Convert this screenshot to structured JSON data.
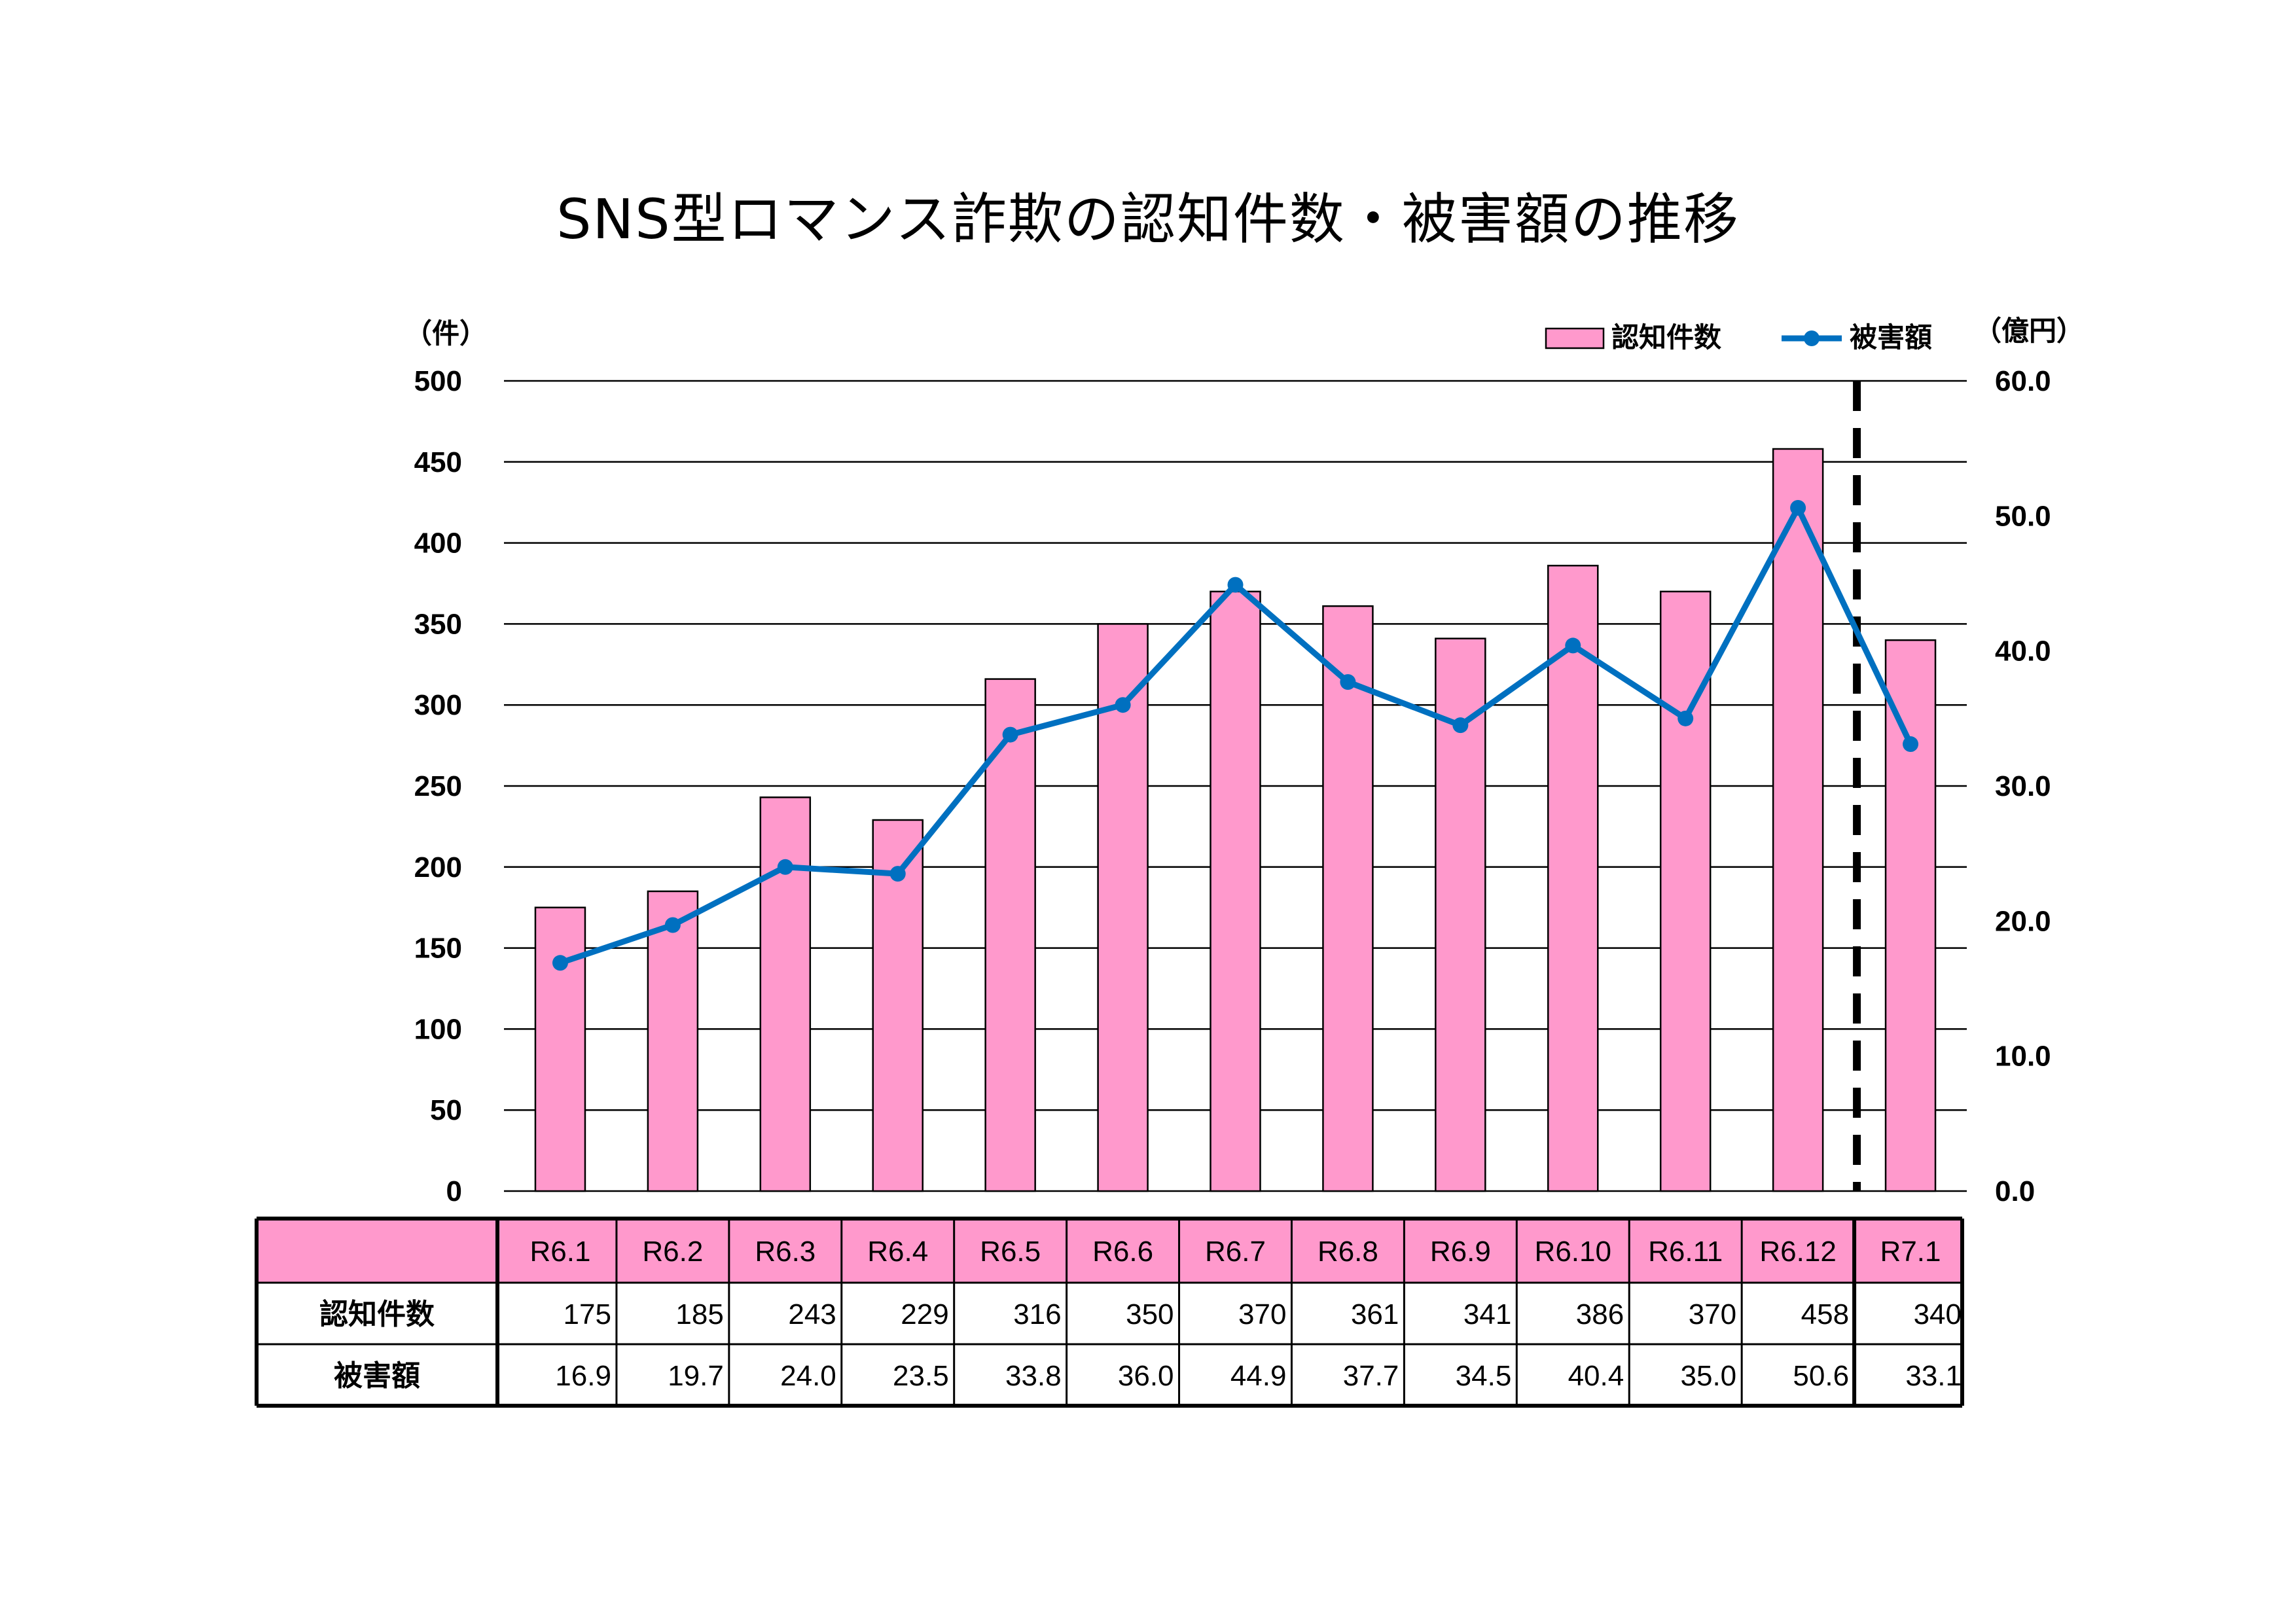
{
  "colors": {
    "bar_fill": "#FF99CC",
    "bar_stroke": "#000000",
    "line": "#0070C0",
    "grid": "#000000",
    "table_header_fill": "#FF99CC"
  },
  "chart_data": {
    "type": "bar",
    "title": "SNS型ロマンス詐欺の認知件数・被害額の推移",
    "categories": [
      "R6.1",
      "R6.2",
      "R6.3",
      "R6.4",
      "R6.5",
      "R6.6",
      "R6.7",
      "R6.8",
      "R6.9",
      "R6.10",
      "R6.11",
      "R6.12",
      "R7.1"
    ],
    "series": [
      {
        "name": "認知件数",
        "type": "bar",
        "axis": "left",
        "values": [
          175,
          185,
          243,
          229,
          316,
          350,
          370,
          361,
          341,
          386,
          370,
          458,
          340
        ]
      },
      {
        "name": "被害額",
        "type": "line",
        "axis": "right",
        "values": [
          16.9,
          19.7,
          24.0,
          23.5,
          33.8,
          36.0,
          44.9,
          37.7,
          34.5,
          40.4,
          35.0,
          50.6,
          33.1
        ]
      }
    ],
    "y_left": {
      "unit": "（件）",
      "range": [
        0,
        500
      ],
      "ticks": [
        "0",
        "50",
        "100",
        "150",
        "200",
        "250",
        "300",
        "350",
        "400",
        "450",
        "500"
      ]
    },
    "y_right": {
      "unit": "（億円）",
      "range": [
        0,
        60
      ],
      "ticks": [
        "0.0",
        "10.0",
        "20.0",
        "30.0",
        "40.0",
        "50.0",
        "60.0"
      ]
    },
    "grid": true,
    "legend_position": "top-right",
    "divider_after_category": "R6.12"
  },
  "table": {
    "header_label": "",
    "rows": [
      {
        "label": "認知件数",
        "values": [
          "175",
          "185",
          "243",
          "229",
          "316",
          "350",
          "370",
          "361",
          "341",
          "386",
          "370",
          "458",
          "340"
        ]
      },
      {
        "label": "被害額",
        "values": [
          "16.9",
          "19.7",
          "24.0",
          "23.5",
          "33.8",
          "36.0",
          "44.9",
          "37.7",
          "34.5",
          "40.4",
          "35.0",
          "50.6",
          "33.1"
        ]
      }
    ]
  }
}
